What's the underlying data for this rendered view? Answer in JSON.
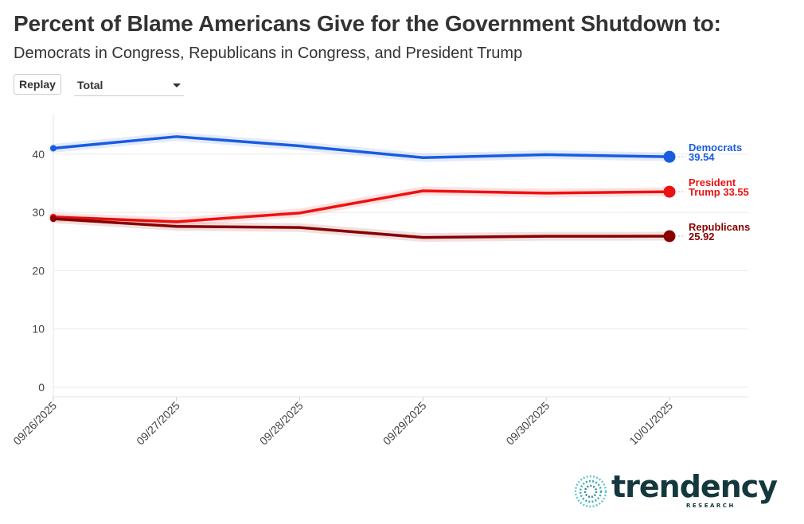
{
  "header": {
    "title": "Percent of Blame Americans Give for the Government Shutdown to:",
    "subtitle": "Democrats in Congress, Republicans in Congress, and President Trump"
  },
  "controls": {
    "replay_label": "Replay",
    "filter_value": "Total"
  },
  "logo": {
    "name": "trendency",
    "tagline": "RESEARCH"
  },
  "colors": {
    "democrats": "#1a5ce0",
    "trump": "#ee1111",
    "republicans": "#880000",
    "grid": "#ebebeb",
    "text": "#333333"
  },
  "chart_data": {
    "type": "line",
    "title": "Percent of Blame Americans Give for the Government Shutdown to:",
    "subtitle": "Democrats in Congress, Republicans in Congress, and President Trump",
    "x": [
      "09/26/2025",
      "09/27/2025",
      "09/28/2025",
      "09/29/2025",
      "09/30/2025",
      "10/01/2025"
    ],
    "ylim": [
      0,
      48
    ],
    "yticks": [
      0,
      10,
      20,
      30,
      40
    ],
    "grid": true,
    "legend": "end-of-line labels",
    "series": [
      {
        "name": "Democrats",
        "label_lines": [
          "Democrats",
          "39.54"
        ],
        "color": "#1a5ce0",
        "values": [
          41.0,
          43.0,
          41.4,
          39.4,
          39.9,
          39.54
        ]
      },
      {
        "name": "President Trump",
        "label_lines": [
          "President",
          "Trump 33.55"
        ],
        "color": "#ee1111",
        "values": [
          29.2,
          28.4,
          29.9,
          33.7,
          33.3,
          33.55
        ]
      },
      {
        "name": "Republicans",
        "label_lines": [
          "Republicans",
          "25.92"
        ],
        "color": "#880000",
        "values": [
          28.9,
          27.6,
          27.4,
          25.7,
          25.9,
          25.92
        ]
      }
    ]
  }
}
